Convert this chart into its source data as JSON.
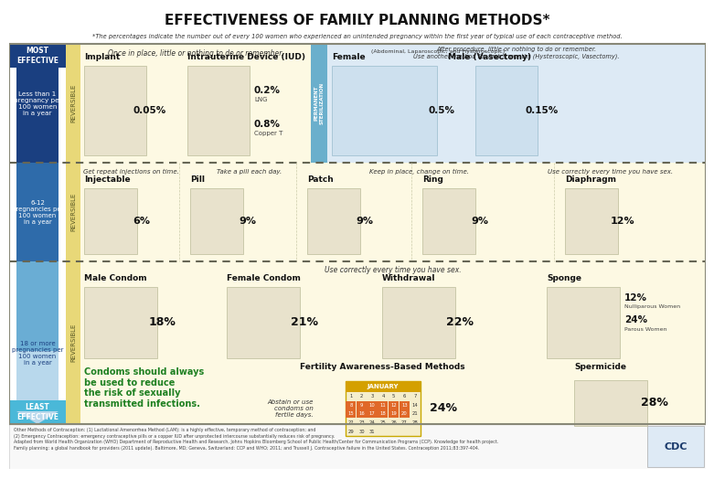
{
  "title": "EFFECTIVENESS OF FAMILY PLANNING METHODS*",
  "subtitle": "*The percentages indicate the number out of every 100 women who experienced an unintended pregnancy within the first year of typical use of each contraceptive method.",
  "bg_color": "#ffffff",
  "yellow_bg": "#fdf9e3",
  "blue_bg": "#ddeaf5",
  "dark_blue": "#1a3a6b",
  "medium_blue": "#2e5f9e",
  "light_blue": "#6ba3cc",
  "lighter_blue": "#a8c8e0",
  "lightest_blue": "#d0e4f0",
  "cyan_blue": "#4db8d4",
  "reversible_col_color": "#e8d878",
  "perm_col_color": "#6aafcc",
  "most_eff_bg": "#1e3f7a",
  "least_eff_bg": "#4ab8d8",
  "green_text": "#1e8022",
  "footer_bg": "#f5f5f5",
  "section1_note": "Once in place, little or nothing to do or remember.",
  "section1_perm_note": "After procedure, little or nothing to do or remember.\nUse another method for first 3 months (Hysteroscopic, Vasectomy).",
  "section2_notes": [
    "Get repeat injections on time.",
    "Take a pill each day.",
    "Keep in place, change on time.",
    "Use correctly every time you have sex."
  ],
  "section3_note": "Use correctly every time you have sex.",
  "row1_label": "Less than 1\npregnancy per\n100 women\nin a year",
  "row2_label": "6-12\npregnancies per\n100 women\nin a year",
  "row3_label": "18 or more\npregnancies per\n100 women\nin a year",
  "footer_text": "Other Methods of Contraception: (1) Lactational Amenorrhea Method (LAM): is a highly effective, temporary method of contraception; and\n(2) Emergency Contraception: emergency contraceptive pills or a copper IUD after unprotected intercourse substantially reduces risk of pregnancy.\nAdapted from World Health Organization (WHO) Department of Reproductive Health and Research, Johns Hopkins Bloomberg School of Public Health/Center for Communication Programs (CCP). Knowledge for health project.\nFamily planning: a global handbook for providers (2011 update). Baltimore, MD; Geneva, Switzerland: CCP and WHO; 2011; and Trussell J. Contraceptive failure in the United States. Contraception 2011;83:397-404.",
  "condom_note": "Condoms should always\nbe used to reduce\nthe risk of sexually\ntransmitted infections.",
  "fertility_name": "Fertility Awareness-Based Methods",
  "fertility_note": "Abstain or use\ncondoms on\nfertile days.",
  "fertility_pct": "24%",
  "spermicide_name": "Spermicide",
  "spermicide_pct": "28%"
}
